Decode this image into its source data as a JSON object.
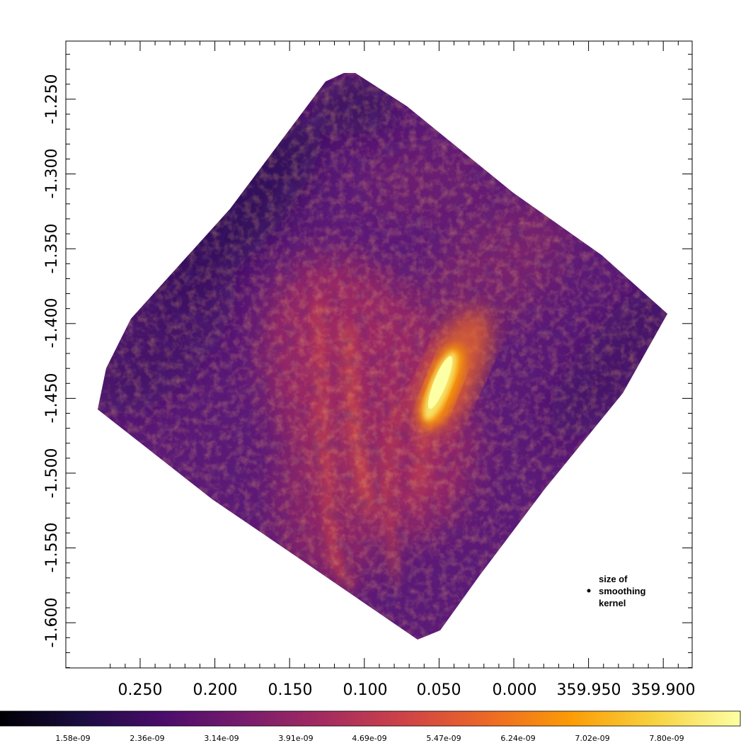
{
  "image": {
    "type": "heatmap",
    "colormap": "inferno",
    "x_axis": {
      "scale": "galactic-longitude",
      "reversed": true,
      "tick_labels": [
        "0.250",
        "0.200",
        "0.150",
        "0.100",
        "0.050",
        "0.000",
        "359.950",
        "359.900"
      ]
    },
    "y_axis": {
      "scale": "galactic-latitude",
      "tick_labels": [
        "-1.250",
        "-1.300",
        "-1.350",
        "-1.400",
        "-1.450",
        "-1.500",
        "-1.550",
        "-1.600"
      ]
    },
    "colorbar": {
      "orientation": "horizontal",
      "tick_labels": [
        "1.58e-09",
        "2.36e-09",
        "3.14e-09",
        "3.91e-09",
        "4.69e-09",
        "5.47e-09",
        "6.24e-09",
        "7.02e-09",
        "7.80e-09"
      ],
      "colors": [
        "#000004",
        "#1b0c41",
        "#4a0c6b",
        "#781c6d",
        "#a52c60",
        "#cf4446",
        "#ed6925",
        "#fb9b06",
        "#f7d13d",
        "#fcffa4"
      ]
    },
    "annotation": {
      "kernel_label": [
        "size of",
        "smoothing",
        "kernel"
      ]
    }
  }
}
